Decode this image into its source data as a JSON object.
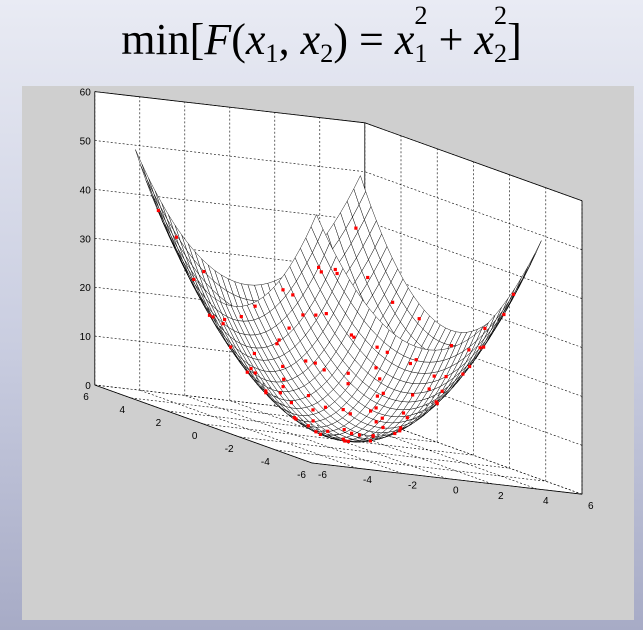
{
  "header": {
    "func_prefix": "min[",
    "func_name": "F",
    "open_paren": "(",
    "var1": "x",
    "sub1": "1",
    "comma": ", ",
    "var2": "x",
    "sub2": "2",
    "close_paren": ")",
    "equals": " = ",
    "term1_var": "x",
    "term1_sub": "1",
    "term1_sup": "2",
    "plus": " + ",
    "term2_var": "x",
    "term2_sub": "2",
    "term2_sup": "2",
    "func_suffix": "]"
  },
  "chart_data": {
    "type": "surface3d",
    "function": "x1^2 + x2^2",
    "x1lim": [
      -6,
      6
    ],
    "x2lim": [
      -6,
      6
    ],
    "zlim": [
      0,
      60
    ],
    "x1_ticks": [
      "-6",
      "-4",
      "-2",
      "0",
      "2",
      "4",
      "6"
    ],
    "x2_ticks": [
      "-6",
      "-4",
      "-2",
      "0",
      "2",
      "4",
      "6"
    ],
    "z_ticks": [
      "0",
      "10",
      "20",
      "30",
      "40",
      "50",
      "60"
    ],
    "surface_domain": [
      -5,
      5
    ],
    "grid": true,
    "surface_color": "#000000",
    "point_color": "#ff0000",
    "points": [
      [
        -4.6,
        -3.2
      ],
      [
        -4.2,
        -2.5
      ],
      [
        -3.9,
        -3.6
      ],
      [
        -4.8,
        -0.6
      ],
      [
        -4.4,
        0.9
      ],
      [
        -3.6,
        -1.4
      ],
      [
        -3.2,
        -2.7
      ],
      [
        -2.9,
        -0.4
      ],
      [
        -2.6,
        1.8
      ],
      [
        -2.3,
        -3.4
      ],
      [
        -2.1,
        -1.9
      ],
      [
        -1.8,
        0.2
      ],
      [
        -1.6,
        2.6
      ],
      [
        -1.4,
        -2.4
      ],
      [
        -1.2,
        -0.9
      ],
      [
        -1.0,
        1.1
      ],
      [
        -0.9,
        -3.6
      ],
      [
        -0.7,
        -1.6
      ],
      [
        -0.6,
        0.5
      ],
      [
        -0.4,
        2.1
      ],
      [
        -0.3,
        -2.8
      ],
      [
        -0.2,
        -0.6
      ],
      [
        0.0,
        1.4
      ],
      [
        0.1,
        -1.8
      ],
      [
        0.3,
        0.1
      ],
      [
        0.4,
        -3.1
      ],
      [
        0.6,
        2.4
      ],
      [
        0.7,
        -0.9
      ],
      [
        0.9,
        0.8
      ],
      [
        1.0,
        -2.2
      ],
      [
        1.2,
        3.3
      ],
      [
        1.3,
        -0.3
      ],
      [
        1.5,
        1.6
      ],
      [
        1.6,
        -1.4
      ],
      [
        1.8,
        -3.5
      ],
      [
        2.0,
        0.4
      ],
      [
        2.2,
        2.2
      ],
      [
        2.3,
        -2.6
      ],
      [
        2.5,
        -0.7
      ],
      [
        2.7,
        1.2
      ],
      [
        2.9,
        -1.8
      ],
      [
        3.1,
        3.0
      ],
      [
        3.3,
        0.0
      ],
      [
        3.5,
        -2.9
      ],
      [
        3.7,
        1.9
      ],
      [
        3.9,
        -1.1
      ],
      [
        4.1,
        0.8
      ],
      [
        4.3,
        -3.8
      ],
      [
        4.5,
        2.6
      ],
      [
        4.7,
        -0.4
      ],
      [
        -3.0,
        3.2
      ],
      [
        -3.8,
        2.4
      ],
      [
        -2.0,
        3.8
      ],
      [
        -1.0,
        3.4
      ],
      [
        0.5,
        3.9
      ],
      [
        1.8,
        4.2
      ],
      [
        2.6,
        3.9
      ],
      [
        3.4,
        4.3
      ],
      [
        4.2,
        3.6
      ],
      [
        -4.9,
        1.9
      ],
      [
        -3.4,
        0.6
      ],
      [
        -2.5,
        0.9
      ],
      [
        -1.5,
        -0.2
      ],
      [
        -0.8,
        0.0
      ],
      [
        0.2,
        -0.3
      ],
      [
        1.1,
        0.2
      ],
      [
        1.9,
        -0.1
      ],
      [
        -2.8,
        -4.2
      ],
      [
        -1.9,
        -4.5
      ],
      [
        -0.5,
        -4.6
      ],
      [
        0.8,
        -4.3
      ],
      [
        2.1,
        -4.6
      ],
      [
        3.0,
        -4.1
      ],
      [
        4.0,
        -4.7
      ],
      [
        -4.3,
        -4.4
      ],
      [
        -3.5,
        4.6
      ],
      [
        -2.2,
        4.7
      ],
      [
        0.0,
        4.6
      ],
      [
        1.4,
        4.8
      ],
      [
        2.9,
        4.7
      ],
      [
        4.4,
        4.5
      ],
      [
        4.8,
        1.5
      ],
      [
        4.9,
        -2.0
      ],
      [
        -4.7,
        4.1
      ],
      [
        -4.0,
        -4.8
      ],
      [
        -0.1,
        2.9
      ],
      [
        0.9,
        -3.9
      ],
      [
        -1.7,
        1.9
      ],
      [
        2.4,
        0.9
      ],
      [
        -3.1,
        -0.8
      ],
      [
        3.8,
        -3.3
      ],
      [
        -0.9,
        -2.9
      ],
      [
        1.7,
        2.9
      ],
      [
        3.2,
        1.9
      ],
      [
        -2.7,
        2.6
      ],
      [
        -1.3,
        -3.9
      ],
      [
        0.4,
        1.9
      ],
      [
        2.8,
        -3.4
      ],
      [
        -4.1,
        -1.7
      ],
      [
        1.3,
        -1.5
      ]
    ]
  }
}
